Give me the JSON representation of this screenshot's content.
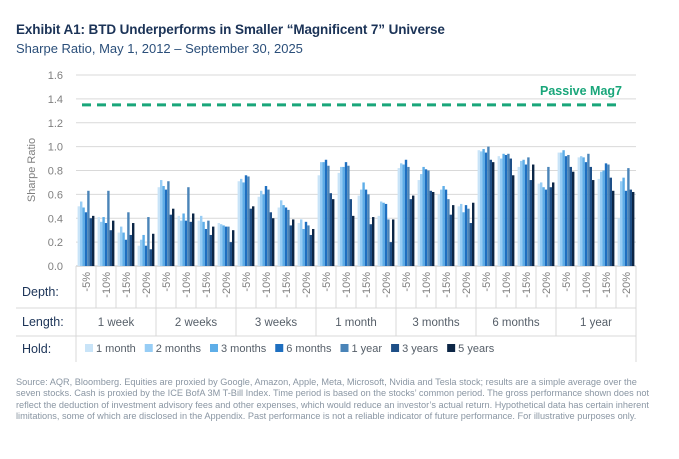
{
  "title": "Exhibit A1: BTD Underperforms in Smaller “Magnificent 7” Universe",
  "subtitle": "Sharpe Ratio, May 1, 2012 – September 30, 2025",
  "source_note": "Source: AQR, Bloomberg. Equities are proxied by Google, Amazon, Apple, Meta, Microsoft, Nvidia and Tesla stock; results are a simple average over the seven stocks. Cash is proxied by the ICE BofA 3M T-Bill Index. Time period is based on the stocks’ common period. The gross performance shown does not reflect the deduction of investment advisory fees and other expenses, which would reduce an investor’s actual return. Hypothetical data has certain inherent limitations, some of which are disclosed in the Appendix. Past performance is not a reliable indicator of future performance. For illustrative purposes only.",
  "colors": {
    "hold": [
      "#c9e4f8",
      "#97cdf5",
      "#5eaee8",
      "#1e6fc0",
      "#4a84b8",
      "#1e4f87",
      "#0c2646"
    ],
    "reference": "#19a67a",
    "grid": "#d9d9d9",
    "axis_text": "#7f7f7f",
    "row_label": "#1b3357"
  },
  "chart_data": {
    "type": "bar",
    "ylabel": "Sharpe Ratio",
    "ylim": [
      0,
      1.6
    ],
    "yticks": [
      "0.0",
      "0.2",
      "0.4",
      "0.6",
      "0.8",
      "1.0",
      "1.2",
      "1.4",
      "1.6"
    ],
    "row_labels": {
      "depth": "Depth:",
      "length": "Length:",
      "hold": "Hold:"
    },
    "lengths": [
      "1 week",
      "2 weeks",
      "3 weeks",
      "1 month",
      "3 months",
      "6 months",
      "1 year"
    ],
    "depths": [
      "-5%",
      "-10%",
      "-15%",
      "-20%"
    ],
    "hold_periods": [
      "1 month",
      "2 months",
      "3 months",
      "6 months",
      "1 year",
      "3 years",
      "5 years"
    ],
    "reference_line": {
      "label": "Passive Mag7",
      "value": 1.35
    },
    "values": [
      [
        [
          0.5,
          0.54,
          0.49,
          0.45,
          0.63,
          0.4,
          0.42
        ],
        [
          0.41,
          0.37,
          0.41,
          0.36,
          0.63,
          0.3,
          0.38
        ],
        [
          0.28,
          0.33,
          0.28,
          0.22,
          0.45,
          0.26,
          0.36
        ],
        [
          0.17,
          0.22,
          0.26,
          0.17,
          0.41,
          0.14,
          0.27
        ]
      ],
      [
        [
          0.66,
          0.72,
          0.67,
          0.64,
          0.71,
          0.43,
          0.48
        ],
        [
          0.42,
          0.38,
          0.44,
          0.38,
          0.66,
          0.37,
          0.44
        ],
        [
          0.38,
          0.42,
          0.37,
          0.31,
          0.38,
          0.26,
          0.33
        ],
        [
          0.36,
          0.35,
          0.34,
          0.33,
          0.33,
          0.2,
          0.3
        ]
      ],
      [
        [
          0.71,
          0.73,
          0.7,
          0.76,
          0.75,
          0.48,
          0.5
        ],
        [
          0.58,
          0.63,
          0.6,
          0.67,
          0.64,
          0.45,
          0.4
        ],
        [
          0.49,
          0.55,
          0.51,
          0.49,
          0.47,
          0.34,
          0.39
        ],
        [
          0.36,
          0.39,
          0.31,
          0.37,
          0.34,
          0.26,
          0.31
        ]
      ],
      [
        [
          0.76,
          0.87,
          0.87,
          0.89,
          0.84,
          0.61,
          0.56
        ],
        [
          0.78,
          0.83,
          0.83,
          0.87,
          0.84,
          0.56,
          0.42
        ],
        [
          0.59,
          0.64,
          0.7,
          0.64,
          0.6,
          0.35,
          0.41
        ],
        [
          0.42,
          0.54,
          0.53,
          0.52,
          0.39,
          0.2,
          0.39
        ]
      ],
      [
        [
          0.82,
          0.86,
          0.85,
          0.89,
          0.83,
          0.56,
          0.59
        ],
        [
          0.72,
          0.77,
          0.83,
          0.81,
          0.8,
          0.63,
          0.62
        ],
        [
          0.6,
          0.64,
          0.67,
          0.64,
          0.56,
          0.43,
          0.51
        ],
        [
          0.5,
          0.52,
          0.45,
          0.51,
          0.48,
          0.36,
          0.53
        ]
      ],
      [
        [
          0.97,
          0.96,
          0.98,
          0.95,
          1.0,
          0.89,
          0.87
        ],
        [
          0.92,
          0.9,
          0.94,
          0.93,
          0.94,
          0.9,
          0.76
        ],
        [
          0.83,
          0.88,
          0.89,
          0.85,
          0.91,
          0.72,
          0.85
        ],
        [
          0.69,
          0.7,
          0.66,
          0.64,
          0.83,
          0.66,
          0.7
        ]
      ],
      [
        [
          0.95,
          0.95,
          0.97,
          0.92,
          0.93,
          0.83,
          0.79
        ],
        [
          0.91,
          0.92,
          0.91,
          0.87,
          0.94,
          0.83,
          0.72
        ],
        [
          0.73,
          0.79,
          0.8,
          0.86,
          0.85,
          0.74,
          0.63
        ],
        [
          0.4,
          0.71,
          0.74,
          0.63,
          0.82,
          0.64,
          0.62
        ]
      ]
    ]
  }
}
